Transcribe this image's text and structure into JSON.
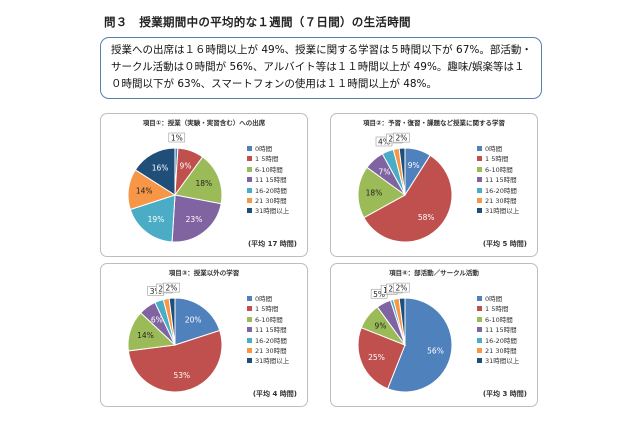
{
  "page": {
    "heading": "問３　授業期間中の平均的な１週間（７日間）の生活時間",
    "summary": "授業への出席は１６時間以上が 49%、授業に関する学習は５時間以下が 67%。部活動・サークル活動は０時間が 56%、アルバイト等は１１時間以上が 49%。趣味/娯楽等は１０時間以下が 63%、スマートフォンの使用は１１時間以上が 48%。"
  },
  "colors": [
    "#4f81bd",
    "#c0504d",
    "#9bbb59",
    "#8064a2",
    "#4bacc6",
    "#f79646",
    "#1f4e79"
  ],
  "chart_data": [
    {
      "type": "pie",
      "title": "項目①：授業（実験・実習含む）への出席",
      "note": "(平均 17 時間)",
      "categories": [
        "0時間",
        "1 5時間",
        "6-10時間",
        "11 15時間",
        "16-20時間",
        "21 30時間",
        "31時間以上"
      ],
      "values": [
        1,
        9,
        18,
        23,
        19,
        14,
        16
      ],
      "labels": [
        "1%",
        "9%",
        "18%",
        "23%",
        "19%",
        "14%",
        "16%"
      ]
    },
    {
      "type": "pie",
      "title": "項目②：予習・復習・課題など授業に関する学習",
      "note": "(平均 5 時間)",
      "categories": [
        "0時間",
        "1 5時間",
        "6-10時間",
        "11 15時間",
        "16-20時間",
        "21 30時間",
        "31時間以上"
      ],
      "values": [
        9,
        58,
        18,
        7,
        4,
        2,
        2
      ],
      "labels": [
        "9%",
        "58%",
        "18%",
        "7%",
        "4%",
        "2%",
        "2%"
      ]
    },
    {
      "type": "pie",
      "title": "項目③：授業以外の学習",
      "note": "(平均 4 時間)",
      "categories": [
        "0時間",
        "1 5時間",
        "6-10時間",
        "11 15時間",
        "16-20時間",
        "21 30時間",
        "31時間以上"
      ],
      "values": [
        20,
        53,
        14,
        6,
        3,
        2,
        2
      ],
      "labels": [
        "20%",
        "53%",
        "14%",
        "6%",
        "3%",
        "2%",
        "2%"
      ]
    },
    {
      "type": "pie",
      "title": "項目④：部活動／サークル活動",
      "note": "(平均 3 時間)",
      "categories": [
        "0時間",
        "1 5時間",
        "6-10時間",
        "11 15時間",
        "16-20時間",
        "21 30時間",
        "31時間以上"
      ],
      "values": [
        56,
        25,
        9,
        5,
        1,
        2,
        2
      ],
      "labels": [
        "56%",
        "25%",
        "9%",
        "5%",
        "1%",
        "2%",
        "2%"
      ]
    }
  ]
}
